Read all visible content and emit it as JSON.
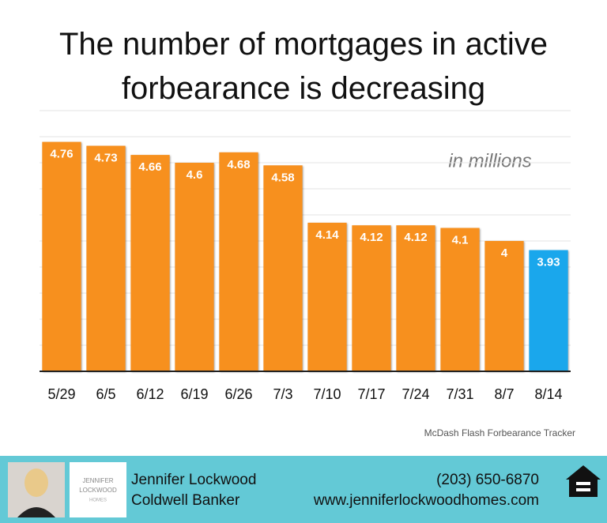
{
  "chart_data": {
    "type": "bar",
    "title": "The number of mortgages in active forbearance is decreasing",
    "annotation": "in millions",
    "source": "McDash Flash Forbearance Tracker",
    "categories": [
      "5/29",
      "6/5",
      "6/12",
      "6/19",
      "6/26",
      "7/3",
      "7/10",
      "7/17",
      "7/24",
      "7/31",
      "8/7",
      "8/14"
    ],
    "values": [
      4.76,
      4.73,
      4.66,
      4.6,
      4.68,
      4.58,
      4.14,
      4.12,
      4.12,
      4.1,
      4,
      3.93
    ],
    "colors": [
      "#f7901e",
      "#f7901e",
      "#f7901e",
      "#f7901e",
      "#f7901e",
      "#f7901e",
      "#f7901e",
      "#f7901e",
      "#f7901e",
      "#f7901e",
      "#f7901e",
      "#1aa7ec"
    ],
    "ylim": [
      3,
      5
    ],
    "yticks": [
      3,
      3.2,
      3.4,
      3.6,
      3.8,
      4,
      4.2,
      4.4,
      4.6,
      4.8,
      5
    ],
    "grid": true
  },
  "footer": {
    "name": "Jennifer Lockwood",
    "company": "Coldwell Banker",
    "phone": "(203) 650-6870",
    "website": "www.jenniferlockwoodhomes.com",
    "logo": [
      "JENNIFER",
      "LOCKWOOD",
      "HOMES"
    ]
  }
}
